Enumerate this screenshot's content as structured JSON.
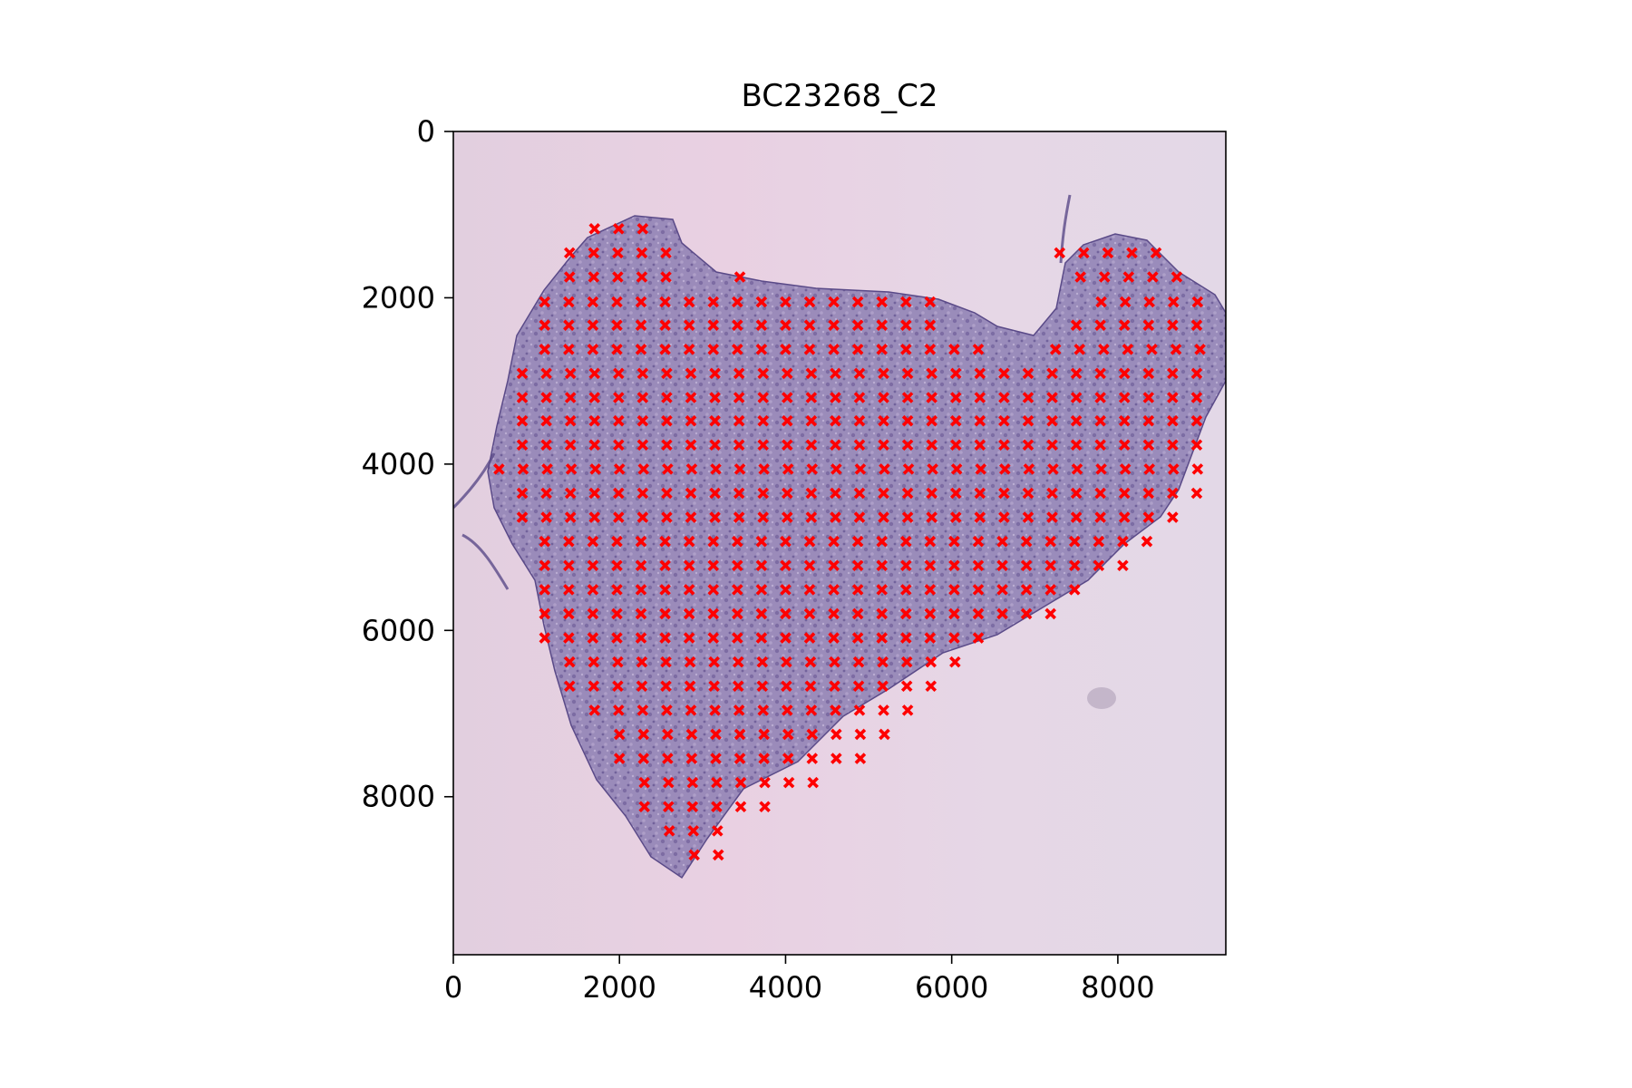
{
  "chart_data": {
    "type": "scatter",
    "title": "BC23268_C2",
    "xlabel": "",
    "ylabel": "",
    "xlim": [
      0,
      9300
    ],
    "ylim": [
      9900,
      0
    ],
    "y_inverted": true,
    "grid": false,
    "legend": "none",
    "background": "tissue histology image (H&E stain) with grid of spots",
    "x_ticks": [
      0,
      2000,
      4000,
      6000,
      8000
    ],
    "x_tick_labels": [
      "0",
      "2000",
      "4000",
      "6000",
      "8000"
    ],
    "y_ticks": [
      0,
      2000,
      4000,
      6000,
      8000
    ],
    "y_tick_labels": [
      "0",
      "2000",
      "4000",
      "6000",
      "8000"
    ],
    "marker": "x",
    "marker_color": "#ff0000",
    "series": [
      {
        "spot_spacing": 290,
        "rows": [
          {
            "y": 1170,
            "x_start": 1700,
            "x_end": 2320
          },
          {
            "y": 1460,
            "x_start": 1400,
            "x_end": 2600
          },
          {
            "y": 1460,
            "x_start": 7300,
            "x_end": 8400
          },
          {
            "y": 1750,
            "x_start": 1400,
            "x_end": 2600
          },
          {
            "y": 1750,
            "x_start": 3450,
            "x_end": 3450
          },
          {
            "y": 1750,
            "x_start": 7550,
            "x_end": 8700
          },
          {
            "y": 2050,
            "x_start": 1100,
            "x_end": 5800
          },
          {
            "y": 2050,
            "x_start": 7800,
            "x_end": 9000
          },
          {
            "y": 2330,
            "x_start": 1100,
            "x_end": 5800
          },
          {
            "y": 2330,
            "x_start": 7500,
            "x_end": 9000
          },
          {
            "y": 2620,
            "x_start": 1100,
            "x_end": 6400
          },
          {
            "y": 2620,
            "x_start": 7250,
            "x_end": 9000
          },
          {
            "y": 2910,
            "x_start": 830,
            "x_end": 9000
          },
          {
            "y": 3200,
            "x_start": 830,
            "x_end": 9000
          },
          {
            "y": 3480,
            "x_start": 830,
            "x_end": 9000
          },
          {
            "y": 3770,
            "x_start": 830,
            "x_end": 9000
          },
          {
            "y": 4060,
            "x_start": 550,
            "x_end": 9000
          },
          {
            "y": 4350,
            "x_start": 830,
            "x_end": 9000
          },
          {
            "y": 4640,
            "x_start": 830,
            "x_end": 8700
          },
          {
            "y": 4930,
            "x_start": 1100,
            "x_end": 8400
          },
          {
            "y": 5220,
            "x_start": 1100,
            "x_end": 8100
          },
          {
            "y": 5510,
            "x_start": 1100,
            "x_end": 7500
          },
          {
            "y": 5800,
            "x_start": 1100,
            "x_end": 7200
          },
          {
            "y": 6090,
            "x_start": 1100,
            "x_end": 6400
          },
          {
            "y": 6380,
            "x_start": 1400,
            "x_end": 6100
          },
          {
            "y": 6670,
            "x_start": 1400,
            "x_end": 5800
          },
          {
            "y": 6960,
            "x_start": 1700,
            "x_end": 5500
          },
          {
            "y": 7250,
            "x_start": 2000,
            "x_end": 5200
          },
          {
            "y": 7540,
            "x_start": 2000,
            "x_end": 4900
          },
          {
            "y": 7830,
            "x_start": 2300,
            "x_end": 4350
          },
          {
            "y": 8120,
            "x_start": 2300,
            "x_end": 3750
          },
          {
            "y": 8410,
            "x_start": 2600,
            "x_end": 3200
          },
          {
            "y": 8700,
            "x_start": 2900,
            "x_end": 3200
          }
        ]
      }
    ]
  }
}
